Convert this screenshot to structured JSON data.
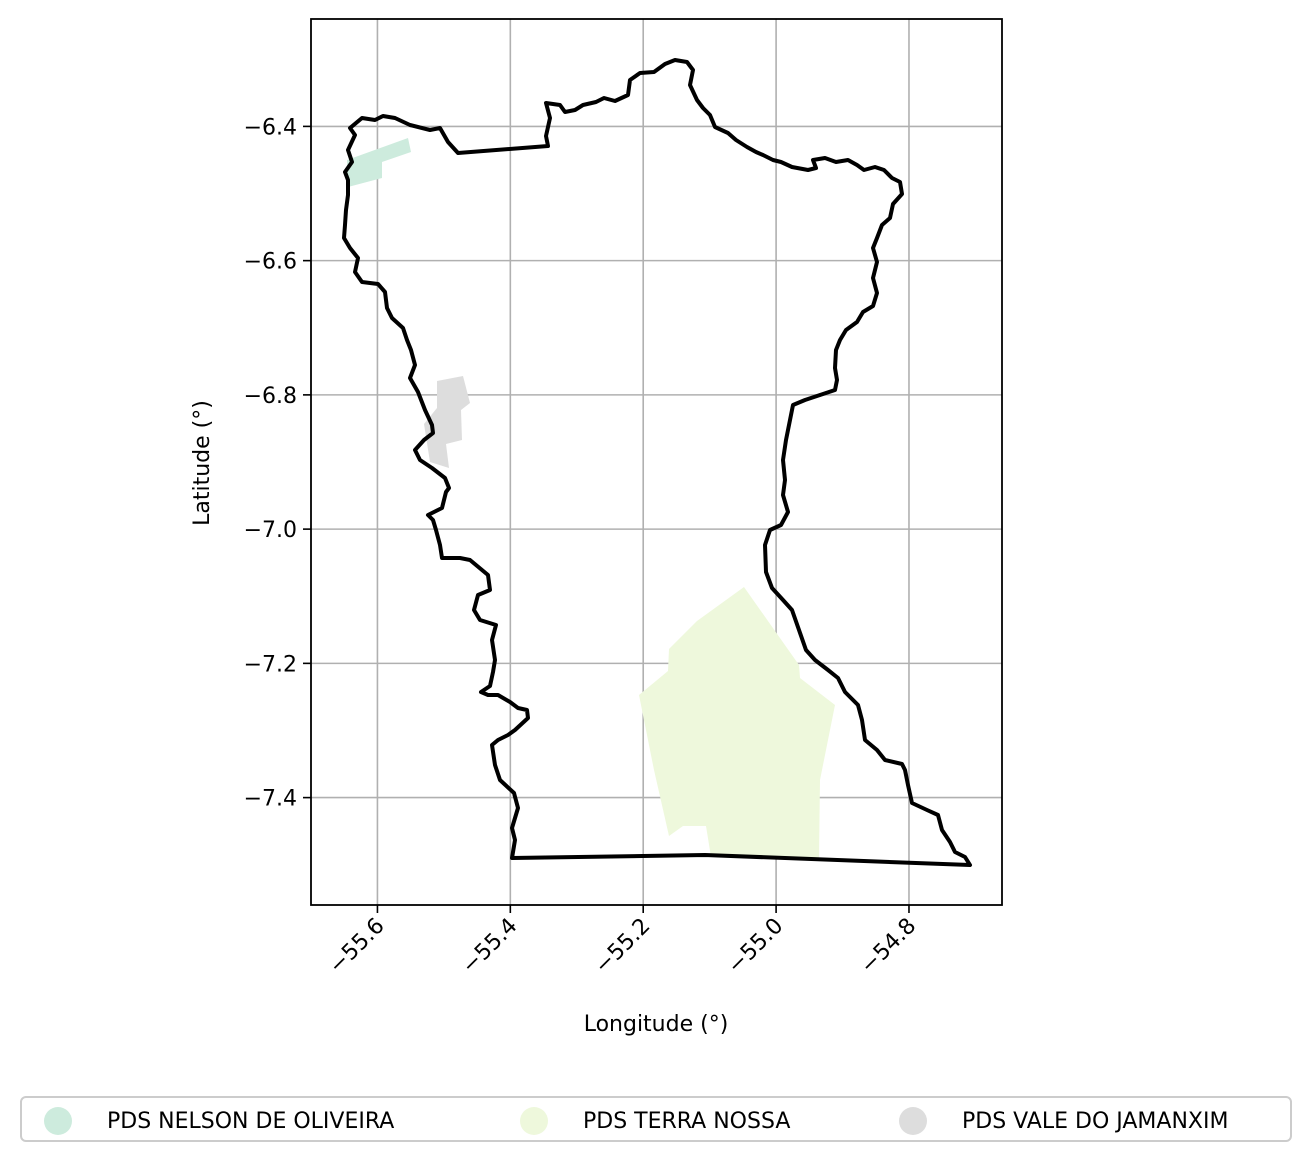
{
  "chart_data": {
    "type": "map",
    "xlabel": "Longitude (°)",
    "ylabel": "Latitude (°)",
    "xlim": [
      -55.7,
      -54.66
    ],
    "ylim": [
      -7.56,
      -6.24
    ],
    "xticks": [
      -55.6,
      -55.4,
      -55.2,
      -55.0,
      -54.8
    ],
    "yticks": [
      -6.4,
      -6.6,
      -6.8,
      -7.0,
      -7.2,
      -7.4
    ],
    "xtick_labels": [
      "−55.6",
      "−55.4",
      "−55.2",
      "−55.0",
      "−54.8"
    ],
    "ytick_labels": [
      "−6.4",
      "−6.6",
      "−6.8",
      "−7.0",
      "−7.2",
      "−7.4"
    ],
    "grid": true,
    "legend_position": "bottom",
    "boundary_color": "#000000",
    "areas": [
      {
        "name": "PDS NELSON DE OLIVEIRA",
        "color": "#cdebdd"
      },
      {
        "name": "PDS TERRA NOSSA",
        "color": "#eef8dc"
      },
      {
        "name": "PDS VALE DO JAMANXIM",
        "color": "#dddddd"
      }
    ]
  }
}
